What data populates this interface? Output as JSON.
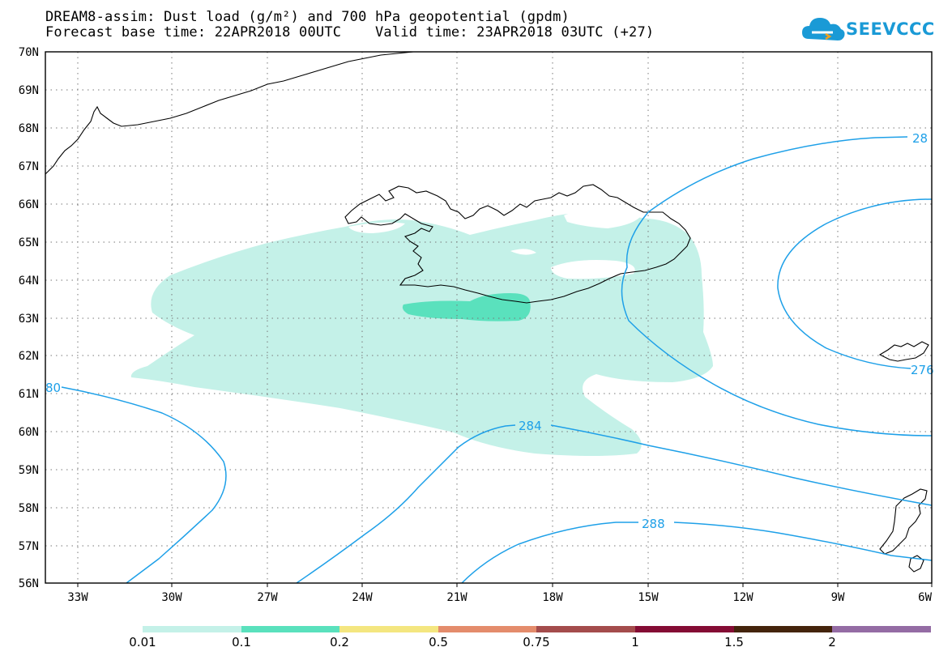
{
  "title_line1": "DREAM8-assim: Dust load (g/m²) and 700 hPa geopotential (gpdm)",
  "title_line2": "Forecast base time: 22APR2018 00UTC    Valid time: 23APR2018 03UTC (+27)",
  "logo_text": "SEEVCCC",
  "lat_labels": [
    "70N",
    "69N",
    "68N",
    "67N",
    "66N",
    "65N",
    "64N",
    "63N",
    "62N",
    "61N",
    "60N",
    "59N",
    "58N",
    "57N",
    "56N"
  ],
  "lon_labels": [
    "33W",
    "30W",
    "27W",
    "24W",
    "21W",
    "18W",
    "15W",
    "12W",
    "9W",
    "6W"
  ],
  "contour_labels": [
    "28",
    "276",
    "80",
    "284",
    "288"
  ],
  "colorbar": {
    "colors": [
      "#c4f1e8",
      "#5ae1bd",
      "#f4e680",
      "#e48c6c",
      "#a44c4c",
      "#840c34",
      "#44240c",
      "#946ca4"
    ],
    "labels": [
      "0.01",
      "0.1",
      "0.2",
      "0.5",
      "0.75",
      "1",
      "1.5",
      "2"
    ]
  },
  "colors": {
    "contour": "#1ea0e8",
    "coast": "#000000",
    "grid": "#777777"
  }
}
